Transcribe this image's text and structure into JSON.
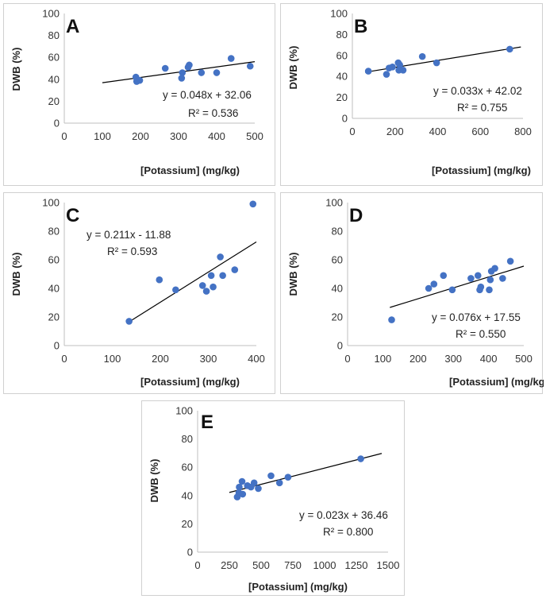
{
  "chart_data": [
    {
      "type": "scatter",
      "panel_label": "A",
      "xlabel": "[Potassium] (mg/kg)",
      "ylabel": "DWB (%)",
      "xlim": [
        0,
        500
      ],
      "xticks": [
        0,
        100,
        200,
        300,
        400,
        500
      ],
      "ylim": [
        0,
        100
      ],
      "yticks": [
        0,
        20,
        40,
        60,
        80,
        100
      ],
      "trendline": {
        "slope": 0.048,
        "intercept": 32.06,
        "x_range": [
          100,
          500
        ]
      },
      "equation": "y = 0.048x + 32.06",
      "r2": "R² = 0.536",
      "points": [
        [
          188,
          42
        ],
        [
          190,
          38
        ],
        [
          198,
          39
        ],
        [
          265,
          50
        ],
        [
          308,
          41
        ],
        [
          310,
          46
        ],
        [
          325,
          51
        ],
        [
          328,
          53
        ],
        [
          360,
          46
        ],
        [
          400,
          46
        ],
        [
          438,
          59
        ],
        [
          488,
          52
        ]
      ]
    },
    {
      "type": "scatter",
      "panel_label": "B",
      "xlabel": "[Potassium] (mg/kg)",
      "ylabel": "DWB (%)",
      "xlim": [
        0,
        800
      ],
      "xticks": [
        0,
        200,
        400,
        600,
        800
      ],
      "ylim": [
        0,
        100
      ],
      "yticks": [
        0,
        20,
        40,
        60,
        80,
        100
      ],
      "trendline": {
        "slope": 0.033,
        "intercept": 42.02,
        "x_range": [
          60,
          790
        ]
      },
      "equation": "y = 0.033x + 42.02",
      "r2": "R² = 0.755",
      "points": [
        [
          75,
          45
        ],
        [
          160,
          42
        ],
        [
          172,
          48
        ],
        [
          188,
          49
        ],
        [
          215,
          53
        ],
        [
          218,
          46
        ],
        [
          222,
          51
        ],
        [
          238,
          46
        ],
        [
          328,
          59
        ],
        [
          395,
          53
        ],
        [
          738,
          66
        ]
      ]
    },
    {
      "type": "scatter",
      "panel_label": "C",
      "xlabel": "[Potassium] (mg/kg)",
      "ylabel": "DWB (%)",
      "xlim": [
        0,
        400
      ],
      "xticks": [
        0,
        100,
        200,
        300,
        400
      ],
      "ylim": [
        0,
        100
      ],
      "yticks": [
        0,
        20,
        40,
        60,
        80,
        100
      ],
      "trendline": {
        "slope": 0.211,
        "intercept": -11.88,
        "x_range": [
          135,
          400
        ]
      },
      "equation": "y = 0.211x - 11.88",
      "r2": "R² = 0.593",
      "points": [
        [
          135,
          17
        ],
        [
          198,
          46
        ],
        [
          232,
          39
        ],
        [
          288,
          42
        ],
        [
          296,
          38
        ],
        [
          306,
          49
        ],
        [
          310,
          41
        ],
        [
          325,
          62
        ],
        [
          330,
          49
        ],
        [
          355,
          53
        ],
        [
          393,
          99
        ]
      ]
    },
    {
      "type": "scatter",
      "panel_label": "D",
      "xlabel": "[Potassium] (mg/kg)",
      "ylabel": "DWB (%)",
      "xlim": [
        0,
        500
      ],
      "xticks": [
        0,
        100,
        200,
        300,
        400,
        500
      ],
      "ylim": [
        0,
        100
      ],
      "yticks": [
        0,
        20,
        40,
        60,
        80,
        100
      ],
      "trendline": {
        "slope": 0.076,
        "intercept": 17.55,
        "x_range": [
          120,
          500
        ]
      },
      "equation": "y = 0.076x + 17.55",
      "r2": "R² = 0.550",
      "points": [
        [
          125,
          18
        ],
        [
          230,
          40
        ],
        [
          245,
          43
        ],
        [
          272,
          49
        ],
        [
          297,
          39
        ],
        [
          350,
          47
        ],
        [
          370,
          49
        ],
        [
          375,
          39
        ],
        [
          378,
          41
        ],
        [
          402,
          39
        ],
        [
          405,
          46
        ],
        [
          408,
          52
        ],
        [
          418,
          54
        ],
        [
          440,
          47
        ],
        [
          462,
          59
        ]
      ]
    },
    {
      "type": "scatter",
      "panel_label": "E",
      "xlabel": "[Potassium] (mg/kg)",
      "ylabel": "DWB (%)",
      "xlim": [
        0,
        1500
      ],
      "xticks": [
        0,
        250,
        500,
        750,
        1000,
        1250,
        1500
      ],
      "ylim": [
        0,
        100
      ],
      "yticks": [
        0,
        20,
        40,
        60,
        80,
        100
      ],
      "trendline": {
        "slope": 0.023,
        "intercept": 36.46,
        "x_range": [
          250,
          1450
        ]
      },
      "equation": "y = 0.023x + 36.46",
      "r2": "R² = 0.800",
      "points": [
        [
          312,
          39
        ],
        [
          325,
          42
        ],
        [
          328,
          46
        ],
        [
          350,
          50
        ],
        [
          355,
          41
        ],
        [
          392,
          47
        ],
        [
          420,
          46
        ],
        [
          445,
          49
        ],
        [
          478,
          45
        ],
        [
          578,
          54
        ],
        [
          645,
          49
        ],
        [
          712,
          53
        ],
        [
          1285,
          66
        ]
      ]
    }
  ]
}
